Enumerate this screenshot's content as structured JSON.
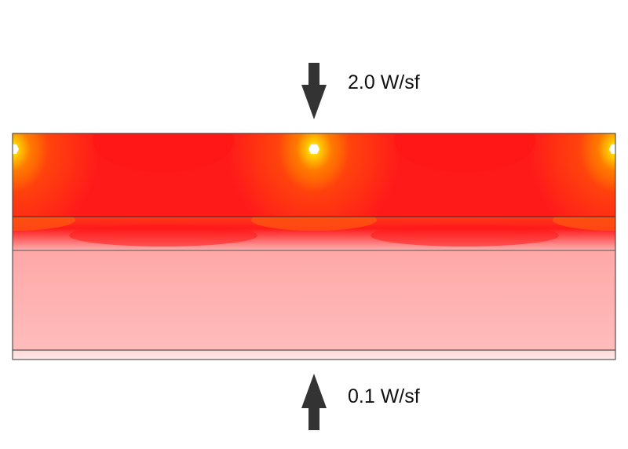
{
  "top_flux": {
    "label": "2.0 W/sf",
    "direction": "down",
    "arrow_color": "#333333"
  },
  "bottom_flux": {
    "label": "0.1 W/sf",
    "direction": "up",
    "arrow_color": "#333333"
  },
  "heat_map": {
    "layers": [
      {
        "name": "heated-layer",
        "colors": [
          "#ff1a1a",
          "#ff7a00",
          "#ffff33"
        ]
      },
      {
        "name": "transition-layer",
        "colors": [
          "#ff1a1a",
          "#ffb3b3"
        ]
      },
      {
        "name": "insulation-layer",
        "colors": [
          "#ffb6b6"
        ]
      },
      {
        "name": "base-layer",
        "colors": [
          "#ffe4e4"
        ]
      }
    ],
    "heat_sources": 3,
    "border_color": "#333333"
  }
}
